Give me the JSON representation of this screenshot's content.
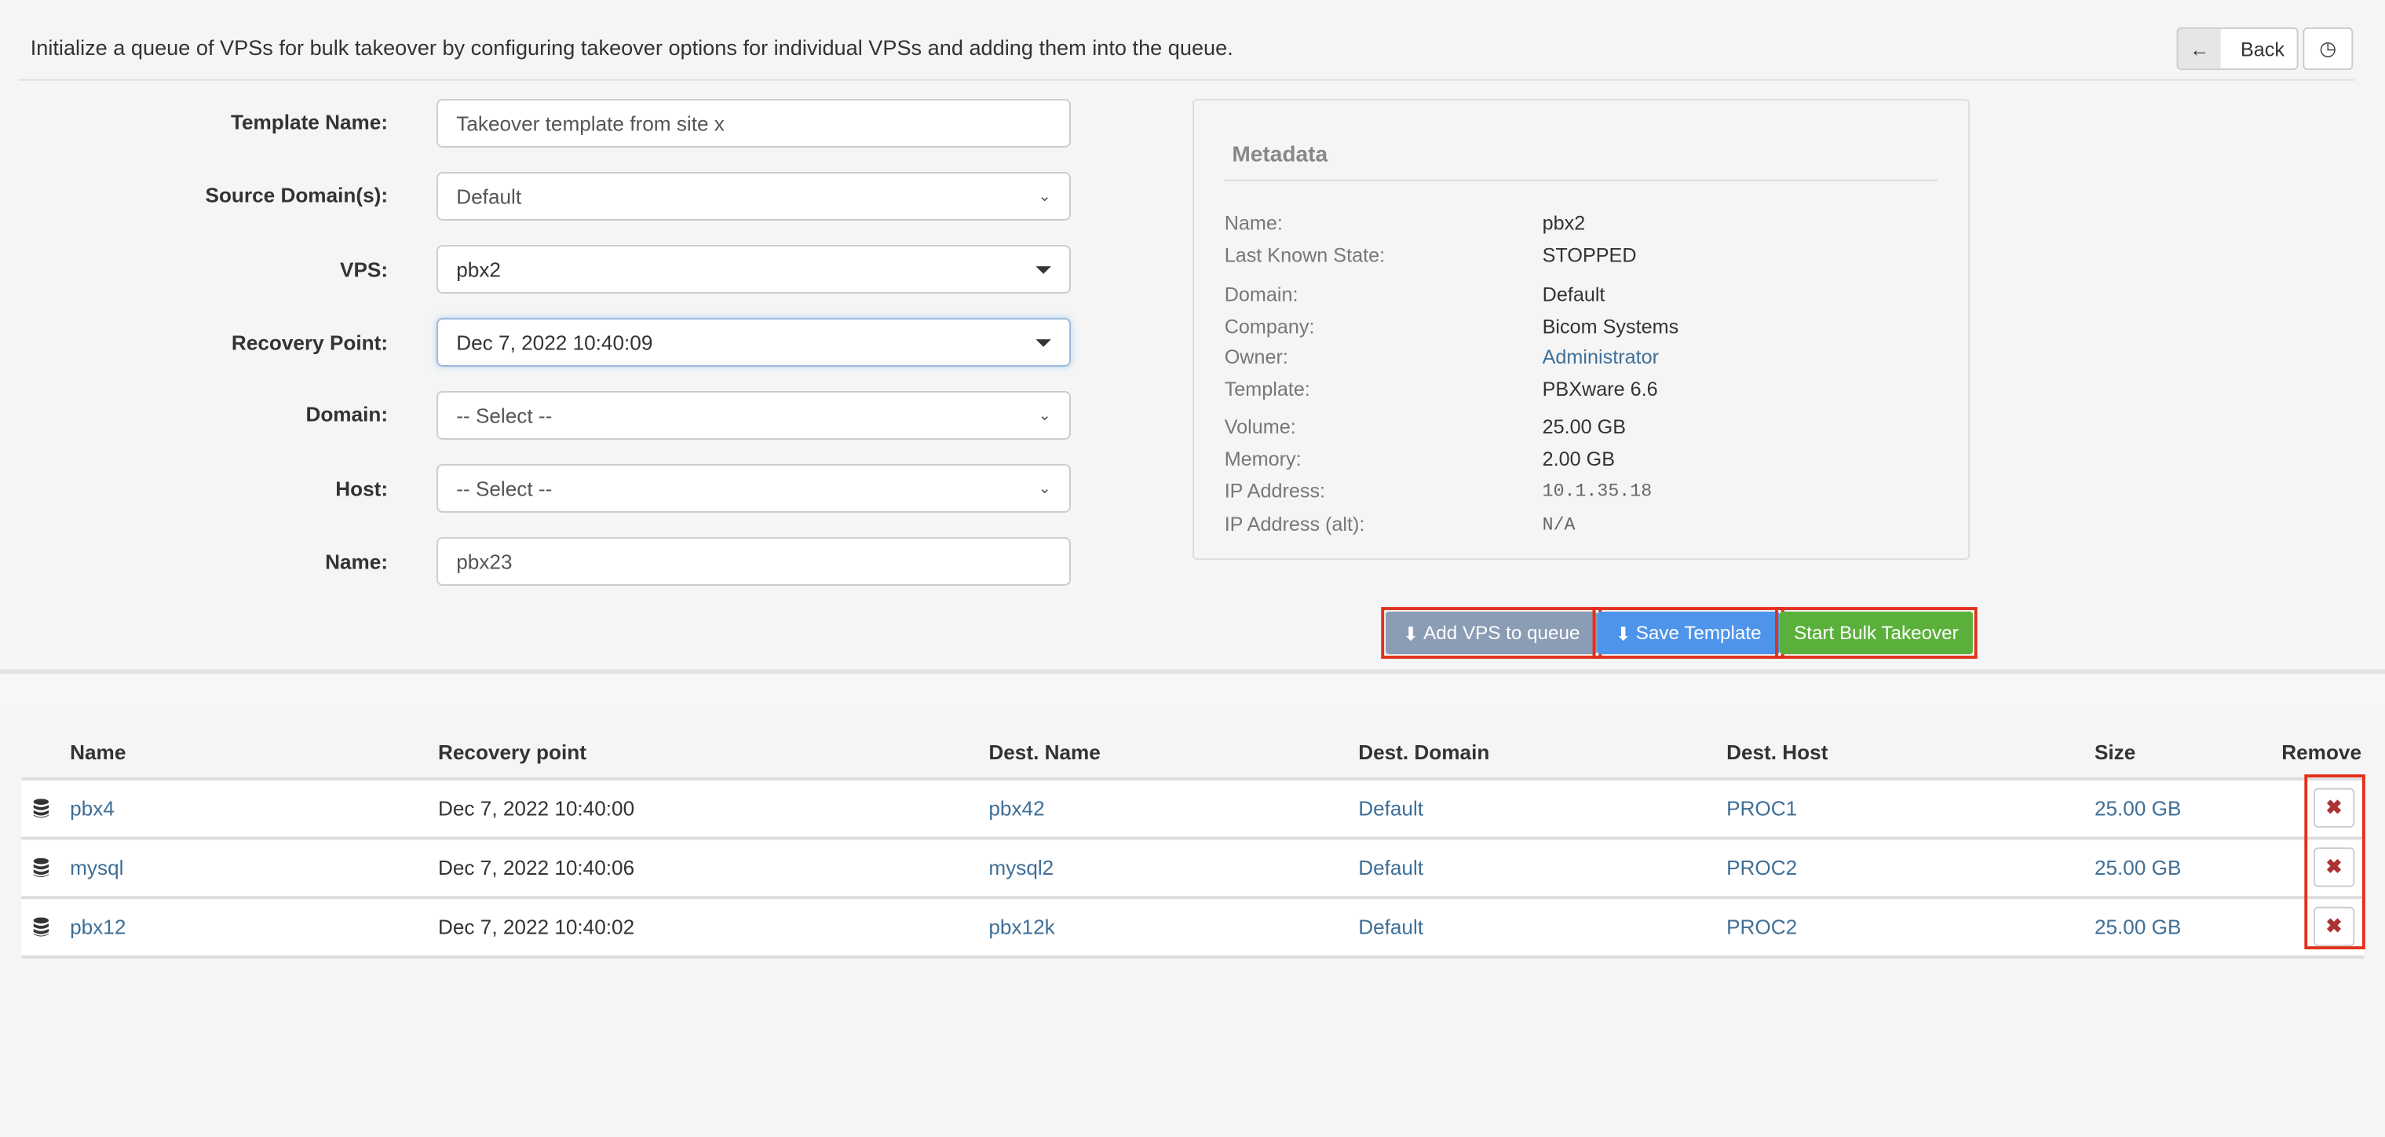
{
  "intro": "Initialize a queue of VPSs for bulk takeover by configuring takeover options for individual VPSs and adding them into the queue.",
  "header": {
    "back_label": "Back",
    "back_icon": "arrow-left-icon",
    "history_icon": "clock-icon"
  },
  "form": {
    "template_name": {
      "label": "Template Name:",
      "value": "Takeover template from site x"
    },
    "source_domains": {
      "label": "Source Domain(s):",
      "value": "Default"
    },
    "vps": {
      "label": "VPS:",
      "value": "pbx2"
    },
    "recovery_point": {
      "label": "Recovery Point:",
      "value": "Dec 7, 2022 10:40:09"
    },
    "domain": {
      "label": "Domain:",
      "value": "-- Select --"
    },
    "host": {
      "label": "Host:",
      "value": "-- Select --"
    },
    "name": {
      "label": "Name:",
      "value": "pbx23"
    }
  },
  "metadata": {
    "title": "Metadata",
    "items": [
      {
        "k": "Name:",
        "v": "pbx2"
      },
      {
        "k": "Last Known State:",
        "v": "STOPPED"
      },
      {
        "k": "Domain:",
        "v": "Default"
      },
      {
        "k": "Company:",
        "v": "Bicom Systems"
      },
      {
        "k": "Owner:",
        "v": "Administrator"
      },
      {
        "k": "Template:",
        "v": "PBXware 6.6"
      },
      {
        "k": "Volume:",
        "v": "25.00 GB"
      },
      {
        "k": "Memory:",
        "v": "2.00 GB"
      },
      {
        "k": "IP Address:",
        "v": "10.1.35.18"
      },
      {
        "k": "IP Address (alt):",
        "v": "N/A"
      }
    ]
  },
  "actions": {
    "add": "Add VPS to queue",
    "save": "Save Template",
    "start": "Start Bulk Takeover",
    "colors": {
      "add": "#8a9db5",
      "save": "#4d94ea",
      "start": "#5bb03c"
    }
  },
  "table": {
    "headers": [
      "Name",
      "Recovery point",
      "Dest. Name",
      "Dest. Domain",
      "Dest. Host",
      "Size",
      "Remove"
    ],
    "rows": [
      [
        "pbx4",
        "Dec 7, 2022 10:40:00",
        "pbx42",
        "Default",
        "PROC1",
        "25.00 GB"
      ],
      [
        "mysql",
        "Dec 7, 2022 10:40:06",
        "mysql2",
        "Default",
        "PROC2",
        "25.00 GB"
      ],
      [
        "pbx12",
        "Dec 7, 2022 10:40:02",
        "pbx12k",
        "Default",
        "PROC2",
        "25.00 GB"
      ]
    ],
    "remove_icon": "times-icon"
  }
}
